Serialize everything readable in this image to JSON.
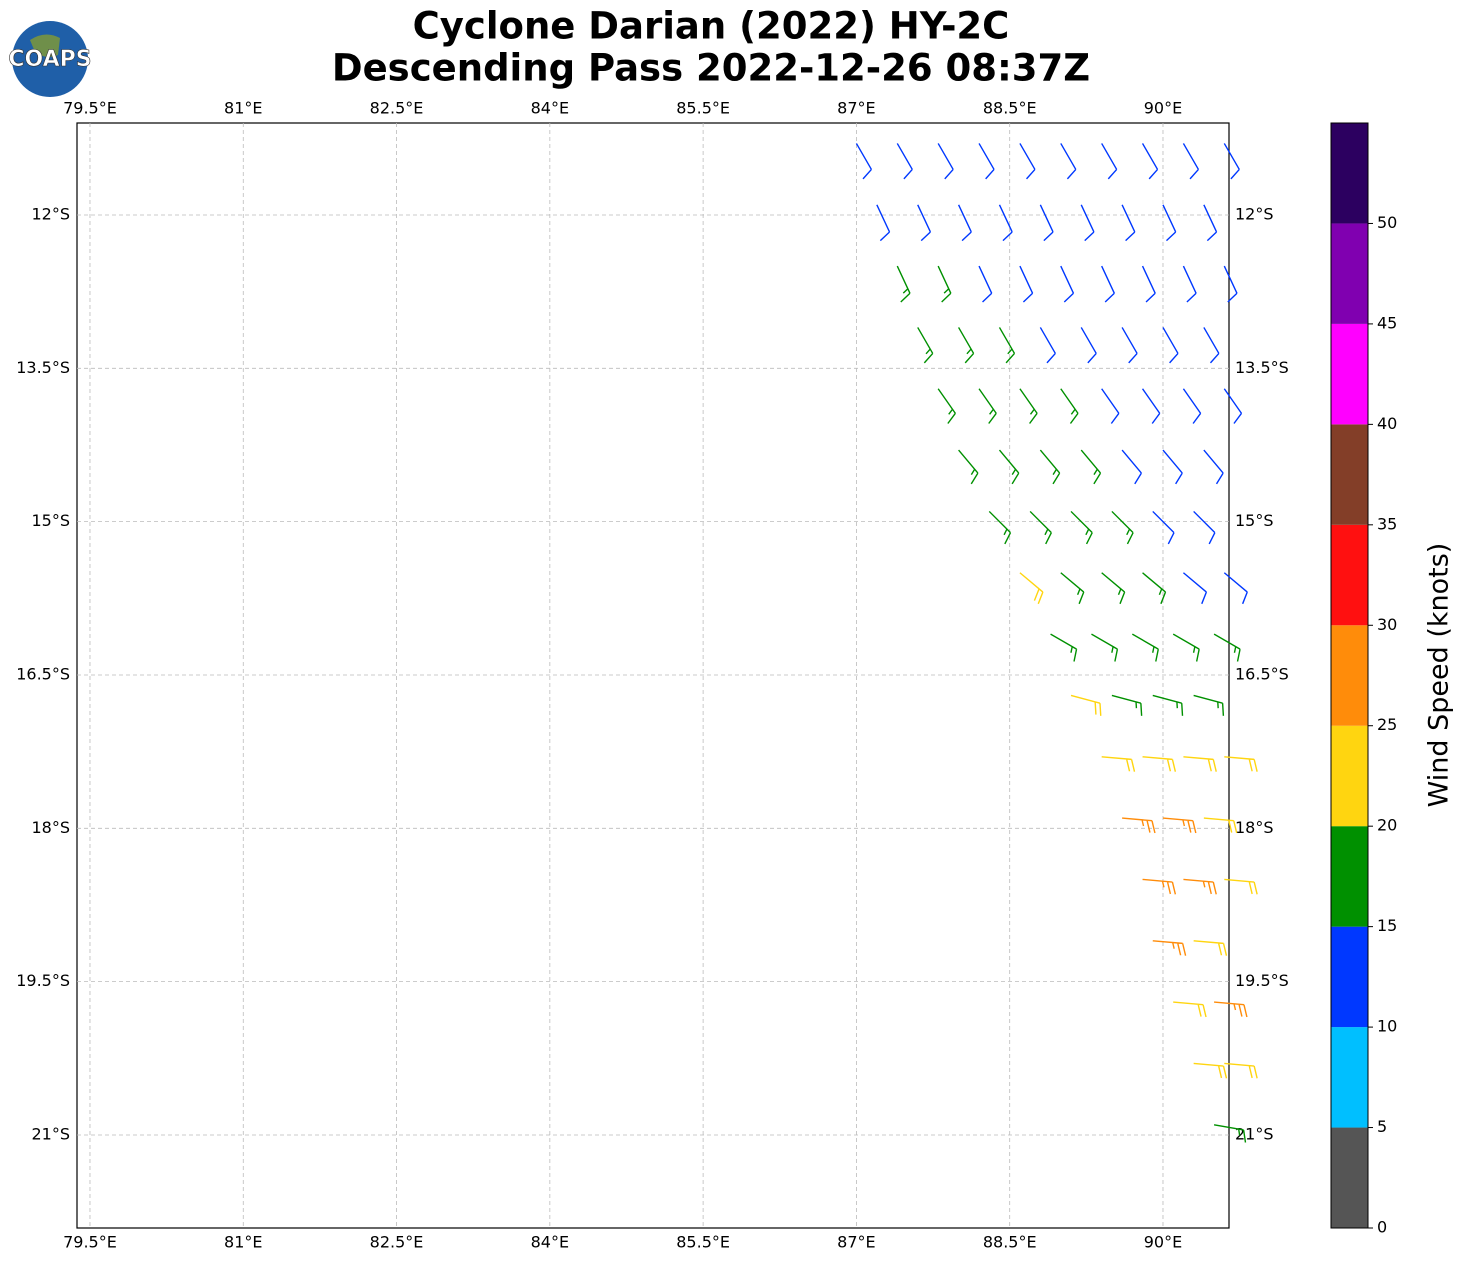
{
  "chart_data": {
    "type": "barbs",
    "title": "Cyclone Darian (2022) HY-2C",
    "subtitle": "Descending Pass 2022-12-26 08:37Z",
    "logo": "COAPS",
    "xlim": [
      79.373,
      90.646
    ],
    "ylim": [
      -21.91,
      -11.1
    ],
    "xticks": [
      {
        "value": 79.5,
        "label": "79.5°E"
      },
      {
        "value": 81,
        "label": "81°E"
      },
      {
        "value": 82.5,
        "label": "82.5°E"
      },
      {
        "value": 84,
        "label": "84°E"
      },
      {
        "value": 85.5,
        "label": "85.5°E"
      },
      {
        "value": 87,
        "label": "87°E"
      },
      {
        "value": 88.5,
        "label": "88.5°E"
      },
      {
        "value": 90,
        "label": "90°E"
      }
    ],
    "yticks": [
      {
        "value": -12,
        "label": "12°S"
      },
      {
        "value": -13.5,
        "label": "13.5°S"
      },
      {
        "value": -15,
        "label": "15°S"
      },
      {
        "value": -16.5,
        "label": "16.5°S"
      },
      {
        "value": -18,
        "label": "18°S"
      },
      {
        "value": -19.5,
        "label": "19.5°S"
      },
      {
        "value": -21,
        "label": "21°S"
      }
    ],
    "grid": true,
    "colorbar": {
      "label": "Wind Speed (knots)",
      "bounds": [
        0,
        5,
        10,
        15,
        20,
        25,
        30,
        35,
        40,
        45,
        50,
        55
      ],
      "colors": [
        "#555555",
        "#00bfff",
        "#0038ff",
        "#009000",
        "#ffd510",
        "#ff8c0a",
        "#ff1010",
        "#833e28",
        "#ff00ff",
        "#8000b0",
        "#2c0060"
      ],
      "ticks": [
        0,
        5,
        10,
        15,
        20,
        25,
        30,
        35,
        40,
        45,
        50
      ]
    },
    "rows": [
      {
        "lat": -11.3,
        "lon": [
          87.0,
          87.4,
          87.8,
          88.2,
          88.6,
          89.0,
          89.4,
          89.8,
          90.2,
          90.6
        ],
        "speed": [
          12,
          12,
          12,
          12,
          12,
          12,
          12,
          12,
          12,
          12
        ],
        "direction": [
          150,
          150,
          150,
          150,
          150,
          150,
          150,
          150,
          150,
          150
        ]
      },
      {
        "lat": -11.9,
        "lon": [
          87.2,
          87.6,
          88.0,
          88.4,
          88.8,
          89.2,
          89.6,
          90.0,
          90.4
        ],
        "speed": [
          12,
          12,
          12,
          12,
          12,
          12,
          12,
          12,
          12
        ],
        "direction": [
          155,
          155,
          155,
          155,
          155,
          155,
          155,
          155,
          155
        ]
      },
      {
        "lat": -12.5,
        "lon": [
          87.4,
          87.8,
          88.2,
          88.6,
          89.0,
          89.4,
          89.8,
          90.2,
          90.6
        ],
        "speed": [
          17,
          17,
          12,
          12,
          12,
          12,
          12,
          12,
          12
        ],
        "direction": [
          155,
          155,
          155,
          155,
          155,
          155,
          155,
          155,
          155
        ]
      },
      {
        "lat": -13.1,
        "lon": [
          87.6,
          88.0,
          88.4,
          88.8,
          89.2,
          89.6,
          90.0,
          90.4
        ],
        "speed": [
          17,
          17,
          17,
          12,
          12,
          12,
          12,
          12
        ],
        "direction": [
          150,
          150,
          150,
          150,
          150,
          150,
          150,
          150
        ]
      },
      {
        "lat": -13.7,
        "lon": [
          87.8,
          88.2,
          88.6,
          89.0,
          89.4,
          89.8,
          90.2,
          90.6
        ],
        "speed": [
          17,
          17,
          17,
          17,
          12,
          12,
          12,
          12
        ],
        "direction": [
          145,
          145,
          145,
          145,
          145,
          145,
          145,
          145
        ]
      },
      {
        "lat": -14.3,
        "lon": [
          88.0,
          88.4,
          88.8,
          89.2,
          89.6,
          90.0,
          90.4
        ],
        "speed": [
          17,
          17,
          17,
          17,
          12,
          12,
          12
        ],
        "direction": [
          140,
          140,
          140,
          140,
          140,
          140,
          140
        ]
      },
      {
        "lat": -14.9,
        "lon": [
          88.3,
          88.7,
          89.1,
          89.5,
          89.9,
          90.3
        ],
        "speed": [
          17,
          17,
          17,
          17,
          12,
          12
        ],
        "direction": [
          135,
          135,
          135,
          135,
          135,
          135
        ]
      },
      {
        "lat": -15.5,
        "lon": [
          88.6,
          89.0,
          89.4,
          89.8,
          90.2,
          90.6
        ],
        "speed": [
          22,
          17,
          17,
          17,
          12,
          12
        ],
        "direction": [
          130,
          130,
          130,
          130,
          130,
          130
        ]
      },
      {
        "lat": -16.1,
        "lon": [
          88.9,
          89.3,
          89.7,
          90.1,
          90.5
        ],
        "speed": [
          17,
          17,
          17,
          17,
          17
        ],
        "direction": [
          120,
          120,
          120,
          120,
          120
        ]
      },
      {
        "lat": -16.7,
        "lon": [
          89.1,
          89.5,
          89.9,
          90.3
        ],
        "speed": [
          22,
          17,
          17,
          17
        ],
        "direction": [
          105,
          105,
          105,
          105
        ]
      },
      {
        "lat": -17.3,
        "lon": [
          89.4,
          89.8,
          90.2,
          90.6
        ],
        "speed": [
          22,
          22,
          22,
          22
        ],
        "direction": [
          95,
          95,
          95,
          95
        ]
      },
      {
        "lat": -17.9,
        "lon": [
          89.6,
          90.0,
          90.4
        ],
        "speed": [
          27,
          27,
          22
        ],
        "direction": [
          95,
          95,
          95
        ]
      },
      {
        "lat": -18.5,
        "lon": [
          89.8,
          90.2,
          90.6
        ],
        "speed": [
          27,
          27,
          22
        ],
        "direction": [
          95,
          95,
          95
        ]
      },
      {
        "lat": -19.1,
        "lon": [
          89.9,
          90.3
        ],
        "speed": [
          27,
          22
        ],
        "direction": [
          95,
          95
        ]
      },
      {
        "lat": -19.7,
        "lon": [
          90.1,
          90.5
        ],
        "speed": [
          22,
          27
        ],
        "direction": [
          95,
          95
        ]
      },
      {
        "lat": -20.3,
        "lon": [
          90.3,
          90.6
        ],
        "speed": [
          22,
          22
        ],
        "direction": [
          95,
          95
        ]
      },
      {
        "lat": -20.9,
        "lon": [
          90.5
        ],
        "speed": [
          17
        ],
        "direction": [
          100
        ]
      }
    ]
  }
}
